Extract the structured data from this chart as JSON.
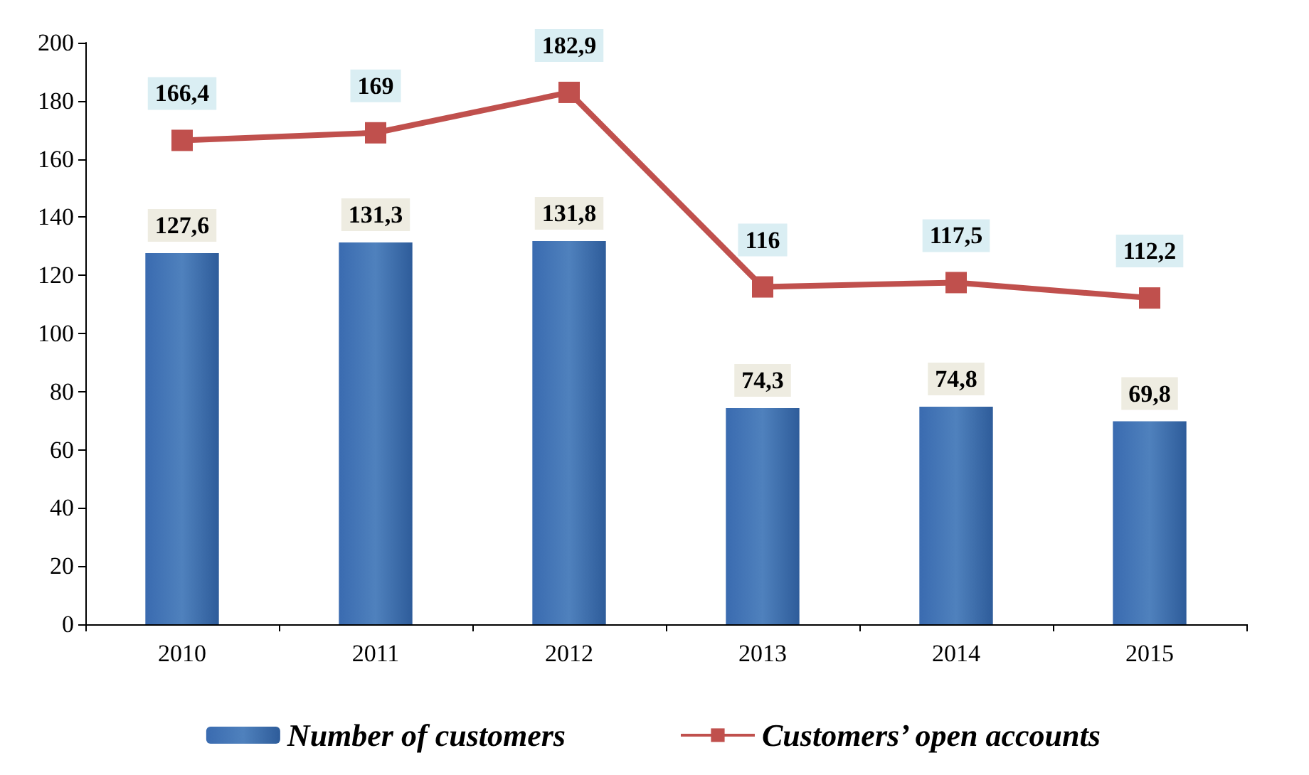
{
  "chart_data": {
    "type": "bar",
    "categories": [
      "2010",
      "2011",
      "2012",
      "2013",
      "2014",
      "2015"
    ],
    "series": [
      {
        "name": "Number of customers",
        "color": "#4f81bd",
        "values": [
          127.6,
          131.3,
          131.8,
          74.3,
          74.8,
          69.8
        ],
        "value_labels": [
          "127,6",
          "131,3",
          "131,8",
          "74,3",
          "74,8",
          "69,8"
        ]
      },
      {
        "name": "Customers’ open accounts",
        "type": "line",
        "color": "#c0504d",
        "values": [
          166.4,
          169,
          182.9,
          116,
          117.5,
          112.2
        ],
        "value_labels": [
          "166,4",
          "169",
          "182,9",
          "116",
          "117,5",
          "112,2"
        ]
      }
    ],
    "ylim": [
      0,
      200
    ],
    "yticks": [
      0,
      20,
      40,
      60,
      80,
      100,
      120,
      140,
      160,
      180,
      200
    ],
    "grid": false,
    "legend": "bottom",
    "marker": "square",
    "line_style": "solid"
  }
}
